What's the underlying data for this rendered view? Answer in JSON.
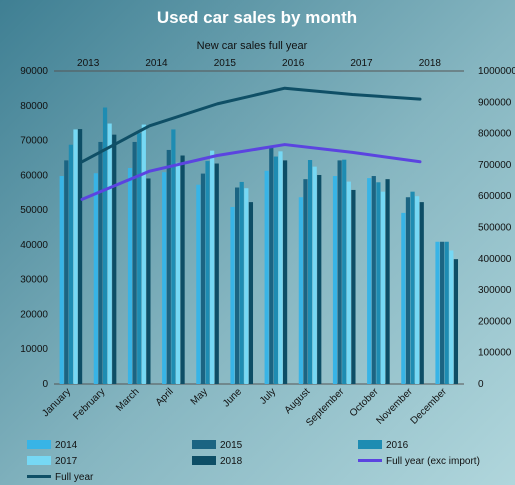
{
  "chart_data": {
    "type": "bar",
    "title": "Used car sales by month",
    "subtitle": "New car sales full year",
    "categories": [
      "January",
      "February",
      "March",
      "April",
      "May",
      "June",
      "July",
      "August",
      "September",
      "October",
      "November",
      "December"
    ],
    "ylim": [
      0,
      90000
    ],
    "y_ticks": [
      "0",
      "10000",
      "20000",
      "30000",
      "40000",
      "50000",
      "60000",
      "70000",
      "80000",
      "90000"
    ],
    "y2lim": [
      0,
      1000000
    ],
    "y2_ticks": [
      "0",
      "100000",
      "200000",
      "300000",
      "400000",
      "500000",
      "600000",
      "700000",
      "800000",
      "900000",
      "1000000"
    ],
    "top_axis_labels": [
      "2013",
      "2014",
      "2015",
      "2016",
      "2017",
      "2018"
    ],
    "grid": false,
    "legend_position": "bottom",
    "series": [
      {
        "name": "2014",
        "color": "#38b4e6",
        "values": [
          59800,
          60600,
          62100,
          60900,
          57300,
          50900,
          61300,
          53700,
          59800,
          59200,
          49200,
          40900
        ]
      },
      {
        "name": "2015",
        "color": "#1b6482",
        "values": [
          64300,
          69600,
          69600,
          67300,
          60500,
          56500,
          67900,
          58900,
          64300,
          59800,
          53700,
          40900
        ]
      },
      {
        "name": "2016",
        "color": "#1e8cb2",
        "values": [
          68800,
          79500,
          72100,
          73200,
          64100,
          58100,
          65400,
          64400,
          64500,
          58000,
          55300,
          40900
        ]
      },
      {
        "name": "2017",
        "color": "#76d8f4",
        "values": [
          73200,
          74900,
          74600,
          63600,
          67100,
          56300,
          66900,
          62500,
          58200,
          55300,
          54000,
          38400
        ]
      },
      {
        "name": "2018",
        "color": "#0d4e66",
        "values": [
          73300,
          71700,
          59100,
          65700,
          63400,
          52300,
          64300,
          60100,
          55800,
          58900,
          52300,
          35900
        ]
      }
    ],
    "lines": [
      {
        "name": "Full year (exc import)",
        "color": "#5b44e0",
        "axis": "right",
        "x": [
          "2013",
          "2014",
          "2015",
          "2016",
          "2017",
          "2018"
        ],
        "values": [
          590000,
          680000,
          730000,
          765000,
          740000,
          710000
        ]
      },
      {
        "name": "Full year",
        "color": "#0f4f66",
        "axis": "right",
        "x": [
          "2013",
          "2014",
          "2015",
          "2016",
          "2017",
          "2018"
        ],
        "values": [
          710000,
          825000,
          895000,
          945000,
          925000,
          910000
        ]
      }
    ]
  }
}
